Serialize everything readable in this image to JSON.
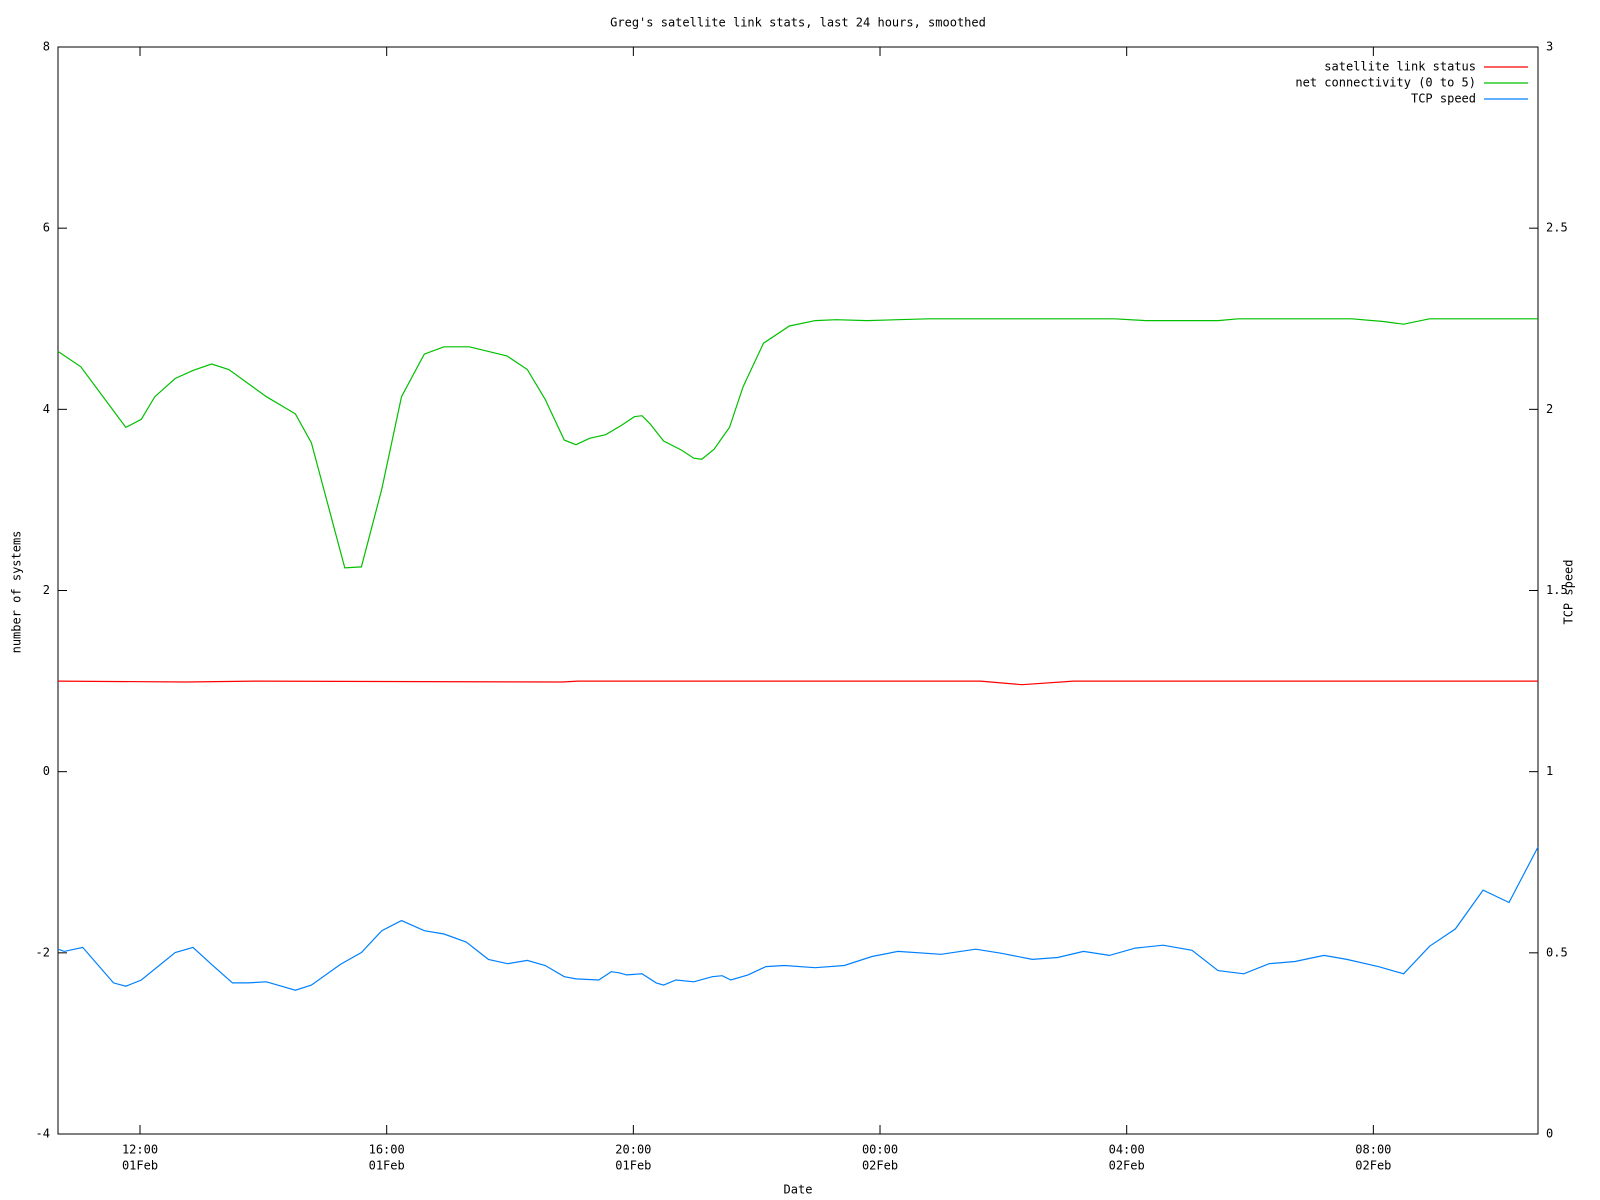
{
  "chart_data": {
    "type": "line",
    "title": "Greg's satellite link stats, last 24 hours, smoothed",
    "x_label": "Date",
    "y_label": "number of systems",
    "y2_label": "TCP speed",
    "legend": "top right",
    "xlim": [
      10.67,
      34.67
    ],
    "xticks": [
      {
        "value": 12,
        "label": "12:00",
        "date": "01Feb"
      },
      {
        "value": 16,
        "label": "16:00",
        "date": "01Feb"
      },
      {
        "value": 20,
        "label": "20:00",
        "date": "01Feb"
      },
      {
        "value": 24,
        "label": "00:00",
        "date": "02Feb"
      },
      {
        "value": 28,
        "label": "04:00",
        "date": "02Feb"
      },
      {
        "value": 32,
        "label": "08:00",
        "date": "02Feb"
      }
    ],
    "ylim": [
      -4,
      8
    ],
    "yticks": [
      -4,
      -2,
      0,
      2,
      4,
      6,
      8
    ],
    "y2lim": [
      0,
      3
    ],
    "y2ticks": [
      0,
      0.5,
      1,
      1.5,
      2,
      2.5,
      3
    ],
    "series": [
      {
        "name": "satellite link status",
        "color": "#ff0000",
        "axis": "y",
        "x": [
          10.67,
          12.74,
          13.91,
          18.85,
          19.1,
          25.63,
          26.3,
          27.14,
          34.67
        ],
        "values": [
          1.0,
          0.99,
          1.0,
          0.99,
          1.0,
          1.0,
          0.96,
          1.0,
          1.0
        ]
      },
      {
        "name": "net connectivity (0 to 5)",
        "color": "#00c000",
        "axis": "y",
        "x": [
          10.67,
          11.04,
          11.77,
          12.02,
          12.24,
          12.57,
          12.86,
          13.16,
          13.44,
          14.05,
          14.52,
          14.78,
          15.32,
          15.59,
          15.92,
          16.24,
          16.61,
          16.93,
          17.34,
          17.95,
          18.28,
          18.57,
          18.88,
          19.07,
          19.29,
          19.55,
          19.8,
          20.02,
          20.14,
          20.27,
          20.49,
          20.78,
          20.98,
          21.11,
          21.31,
          21.56,
          21.78,
          22.11,
          22.53,
          22.95,
          23.29,
          23.79,
          24.79,
          26.47,
          27.8,
          28.31,
          29.48,
          29.81,
          31.65,
          32.16,
          32.49,
          32.91,
          34.67
        ],
        "values": [
          4.64,
          4.47,
          3.8,
          3.89,
          4.14,
          4.34,
          4.43,
          4.5,
          4.44,
          4.14,
          3.95,
          3.63,
          2.25,
          2.26,
          3.12,
          4.14,
          4.61,
          4.69,
          4.69,
          4.59,
          4.44,
          4.11,
          3.66,
          3.61,
          3.68,
          3.72,
          3.82,
          3.92,
          3.93,
          3.84,
          3.65,
          3.55,
          3.46,
          3.45,
          3.56,
          3.8,
          4.25,
          4.73,
          4.92,
          4.98,
          4.99,
          4.98,
          5.0,
          5.0,
          5.0,
          4.98,
          4.98,
          5.0,
          5.0,
          4.97,
          4.94,
          5.0,
          5.0
        ]
      },
      {
        "name": "TCP speed",
        "color": "#0080ff",
        "axis": "y2",
        "x": [
          10.67,
          10.77,
          11.07,
          11.57,
          11.77,
          12.02,
          12.57,
          12.86,
          13.16,
          13.5,
          13.75,
          14.05,
          14.52,
          14.78,
          15.25,
          15.59,
          15.92,
          16.24,
          16.61,
          16.93,
          17.29,
          17.65,
          17.96,
          18.28,
          18.57,
          18.88,
          19.07,
          19.44,
          19.64,
          19.77,
          19.89,
          20.14,
          20.37,
          20.49,
          20.69,
          20.98,
          21.28,
          21.44,
          21.58,
          21.86,
          22.15,
          22.45,
          22.95,
          23.42,
          23.87,
          24.29,
          24.99,
          25.55,
          25.96,
          26.47,
          26.88,
          27.3,
          27.72,
          28.14,
          28.59,
          29.06,
          29.48,
          29.9,
          30.31,
          30.73,
          31.2,
          31.57,
          32.08,
          32.49,
          32.91,
          33.33,
          33.78,
          34.2,
          34.67
        ],
        "values": [
          0.51,
          0.504,
          0.515,
          0.417,
          0.408,
          0.425,
          0.501,
          0.515,
          0.468,
          0.417,
          0.417,
          0.42,
          0.397,
          0.411,
          0.468,
          0.501,
          0.561,
          0.589,
          0.561,
          0.552,
          0.53,
          0.482,
          0.47,
          0.479,
          0.465,
          0.434,
          0.428,
          0.425,
          0.448,
          0.445,
          0.439,
          0.442,
          0.417,
          0.411,
          0.425,
          0.42,
          0.434,
          0.437,
          0.425,
          0.439,
          0.462,
          0.465,
          0.459,
          0.465,
          0.49,
          0.504,
          0.496,
          0.51,
          0.499,
          0.482,
          0.487,
          0.504,
          0.493,
          0.513,
          0.521,
          0.507,
          0.451,
          0.442,
          0.47,
          0.476,
          0.493,
          0.482,
          0.462,
          0.442,
          0.518,
          0.566,
          0.673,
          0.639,
          0.792
        ]
      }
    ]
  }
}
